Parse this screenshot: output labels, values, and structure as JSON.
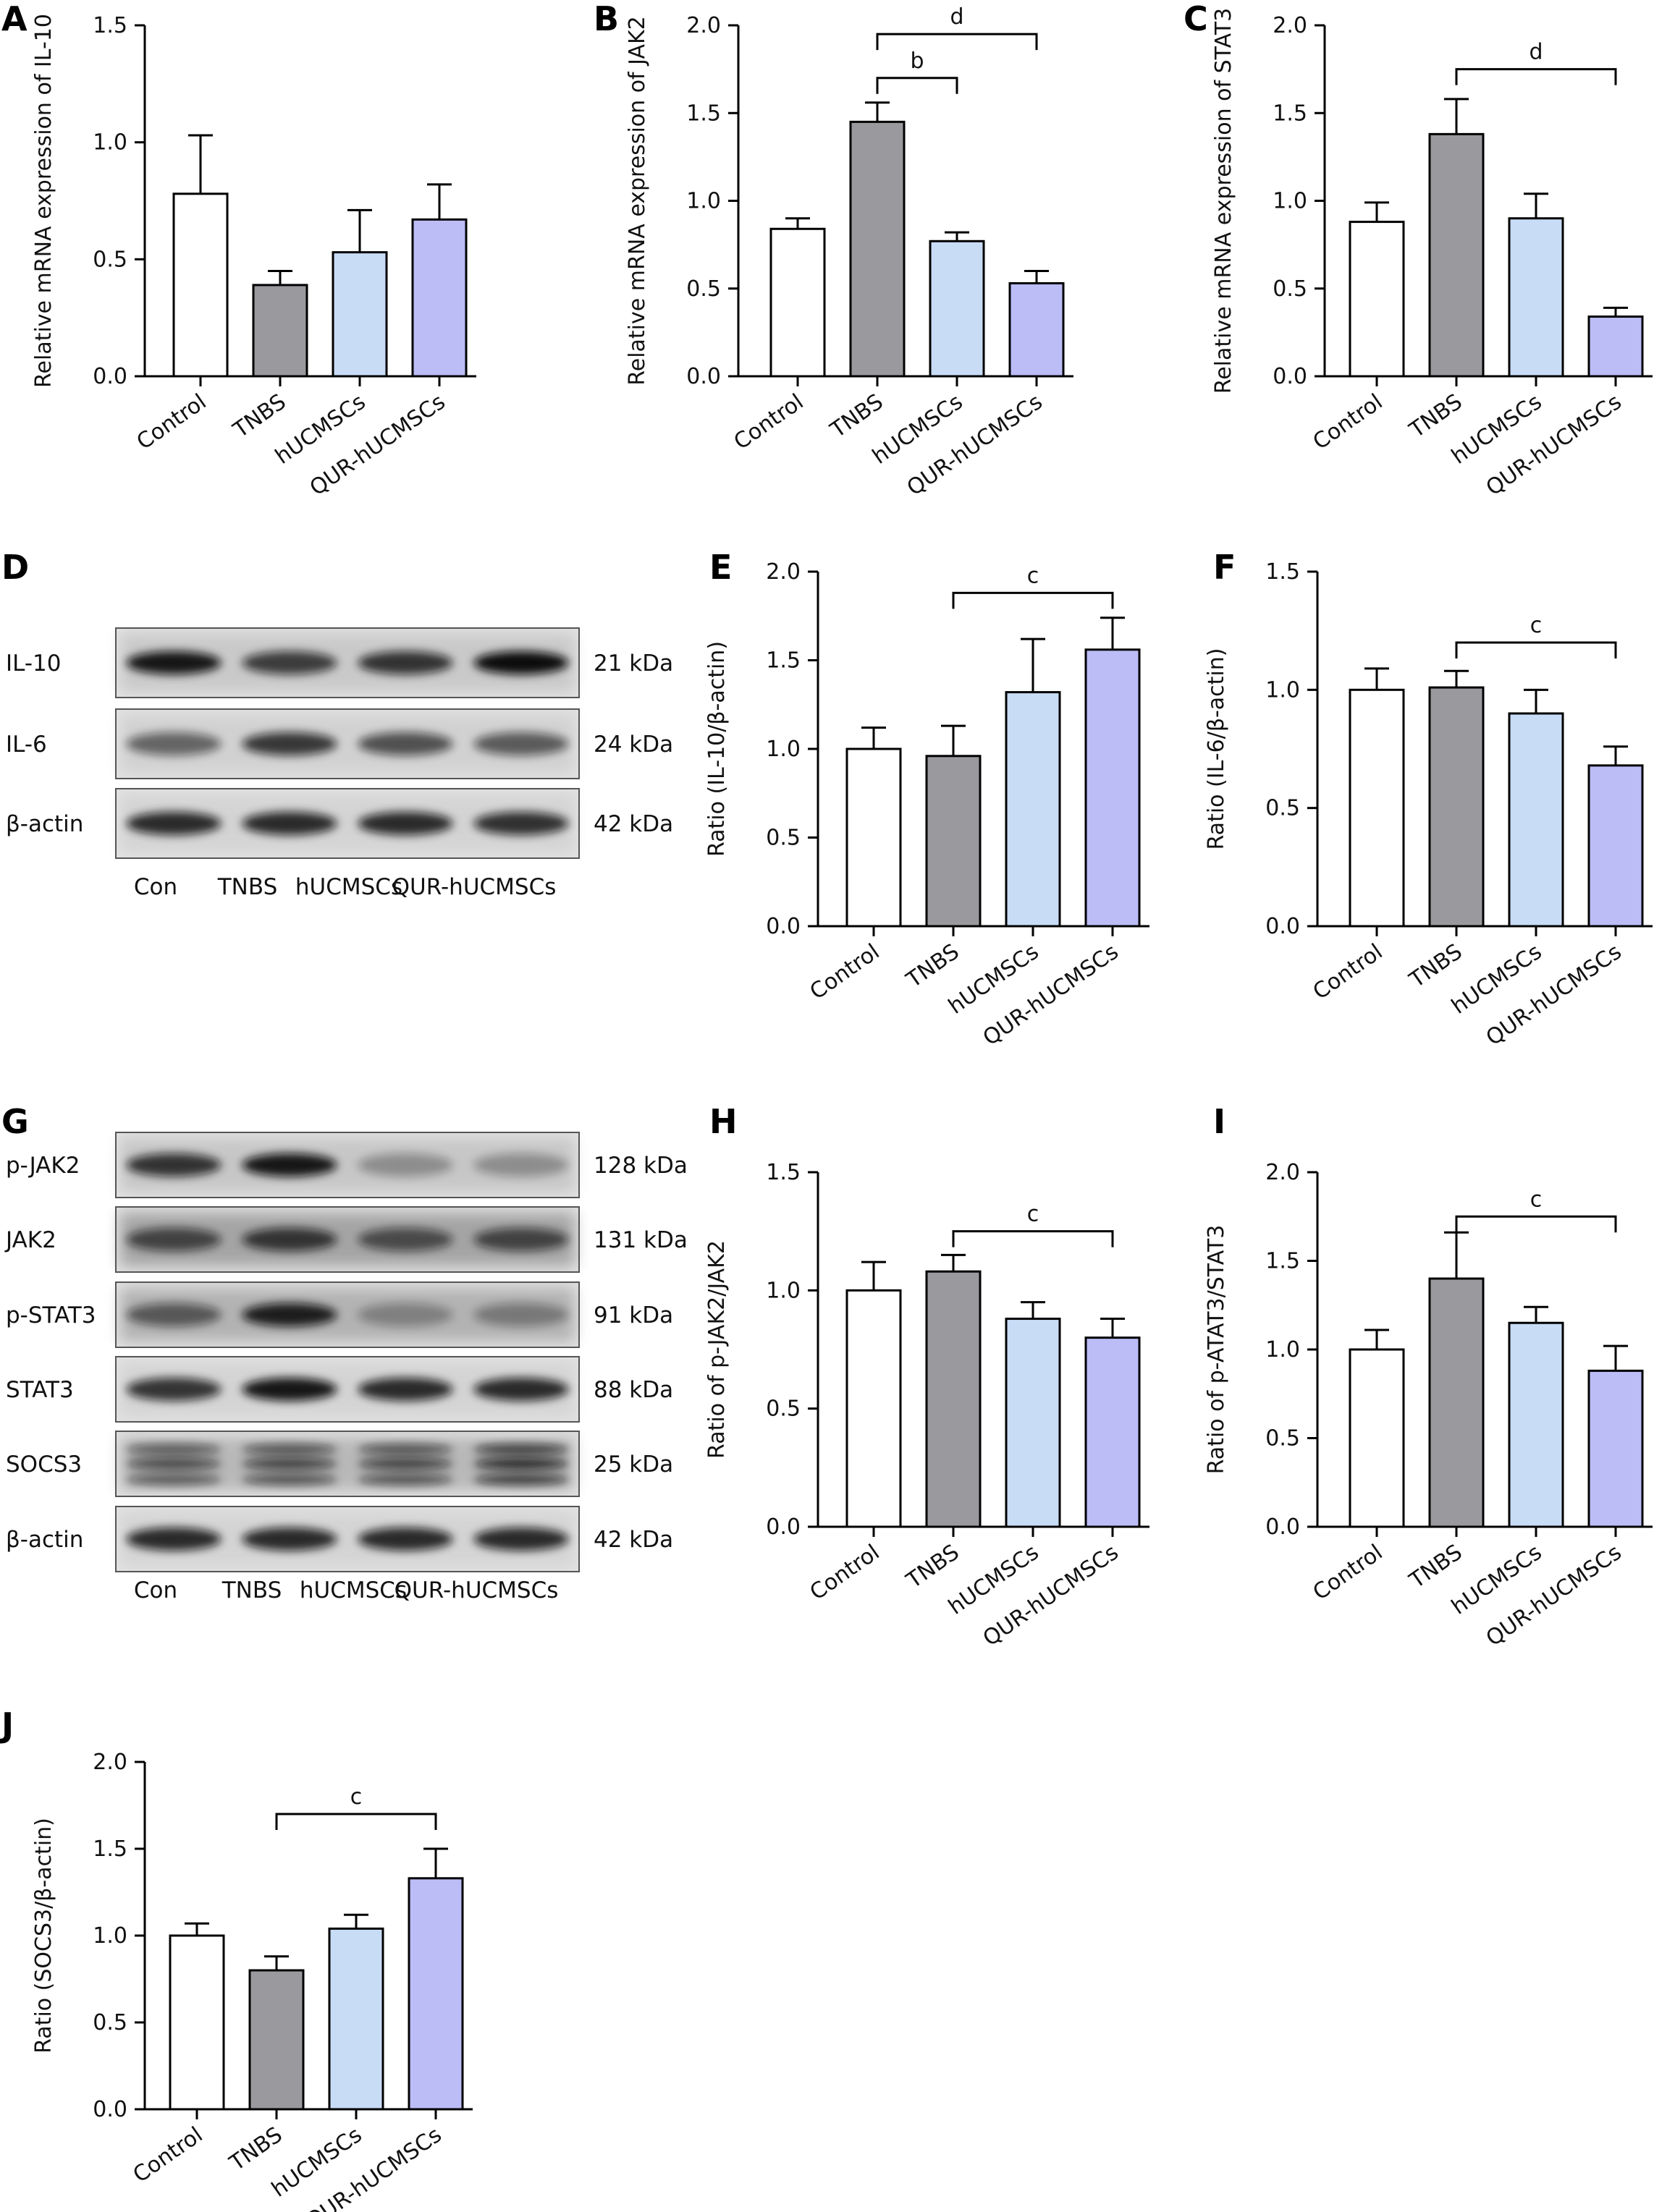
{
  "colors": {
    "Control": "#ffffff",
    "TNBS": "#9a9a9e",
    "hUCMSCs": "#c8dcf6",
    "QUR-hUCMSCs": "#bcbcf7",
    "stroke": "#000000"
  },
  "chart_data": [
    {
      "panel": "A",
      "type": "bar",
      "categories": [
        "Control",
        "TNBS",
        "hUCMSCs",
        "QUR-hUCMSCs"
      ],
      "values": [
        0.78,
        0.39,
        0.53,
        0.67
      ],
      "errors": [
        0.25,
        0.06,
        0.18,
        0.15
      ],
      "ylabel": "Relative mRNA expression of IL-10",
      "ylim": [
        0,
        1.5
      ],
      "yticks": [
        0.0,
        0.5,
        1.0,
        1.5
      ],
      "yticklabels": [
        "0.0",
        "0.5",
        "1.0",
        "1.5"
      ],
      "brackets": []
    },
    {
      "panel": "B",
      "type": "bar",
      "categories": [
        "Control",
        "TNBS",
        "hUCMSCs",
        "QUR-hUCMSCs"
      ],
      "values": [
        0.84,
        1.45,
        0.77,
        0.53
      ],
      "errors": [
        0.06,
        0.11,
        0.05,
        0.07
      ],
      "ylabel": "Relative mRNA expression of JAK2",
      "ylim": [
        0,
        2.0
      ],
      "yticks": [
        0.0,
        0.5,
        1.0,
        1.5,
        2.0
      ],
      "yticklabels": [
        "0.0",
        "0.5",
        "1.0",
        "1.5",
        "2.0"
      ],
      "brackets": [
        {
          "from": 1,
          "to": 2,
          "y": 1.7,
          "label": "b"
        },
        {
          "from": 1,
          "to": 3,
          "y": 1.95,
          "label": "d"
        }
      ]
    },
    {
      "panel": "C",
      "type": "bar",
      "categories": [
        "Control",
        "TNBS",
        "hUCMSCs",
        "QUR-hUCMSCs"
      ],
      "values": [
        0.88,
        1.38,
        0.9,
        0.34
      ],
      "errors": [
        0.11,
        0.2,
        0.14,
        0.05
      ],
      "ylabel": "Relative mRNA expression of STAT3",
      "ylim": [
        0,
        2.0
      ],
      "yticks": [
        0.0,
        0.5,
        1.0,
        1.5,
        2.0
      ],
      "yticklabels": [
        "0.0",
        "0.5",
        "1.0",
        "1.5",
        "2.0"
      ],
      "brackets": [
        {
          "from": 1,
          "to": 3,
          "y": 1.75,
          "label": "d"
        }
      ]
    },
    {
      "panel": "E",
      "type": "bar",
      "categories": [
        "Control",
        "TNBS",
        "hUCMSCs",
        "QUR-hUCMSCs"
      ],
      "values": [
        1.0,
        0.96,
        1.32,
        1.56
      ],
      "errors": [
        0.12,
        0.17,
        0.3,
        0.18
      ],
      "ylabel": "Ratio (IL-10/β-actin)",
      "ylim": [
        0,
        2.0
      ],
      "yticks": [
        0.0,
        0.5,
        1.0,
        1.5,
        2.0
      ],
      "yticklabels": [
        "0.0",
        "0.5",
        "1.0",
        "1.5",
        "2.0"
      ],
      "brackets": [
        {
          "from": 1,
          "to": 3,
          "y": 1.88,
          "label": "c"
        }
      ]
    },
    {
      "panel": "F",
      "type": "bar",
      "categories": [
        "Control",
        "TNBS",
        "hUCMSCs",
        "QUR-hUCMSCs"
      ],
      "values": [
        1.0,
        1.01,
        0.9,
        0.68
      ],
      "errors": [
        0.09,
        0.07,
        0.1,
        0.08
      ],
      "ylabel": "Ratio (IL-6/β-actin)",
      "ylim": [
        0,
        1.5
      ],
      "yticks": [
        0.0,
        0.5,
        1.0,
        1.5
      ],
      "yticklabels": [
        "0.0",
        "0.5",
        "1.0",
        "1.5"
      ],
      "brackets": [
        {
          "from": 1,
          "to": 3,
          "y": 1.2,
          "label": "c"
        }
      ]
    },
    {
      "panel": "H",
      "type": "bar",
      "categories": [
        "Control",
        "TNBS",
        "hUCMSCs",
        "QUR-hUCMSCs"
      ],
      "values": [
        1.0,
        1.08,
        0.88,
        0.8
      ],
      "errors": [
        0.12,
        0.07,
        0.07,
        0.08
      ],
      "ylabel": "Ratio of p-JAK2/JAK2",
      "ylim": [
        0,
        1.5
      ],
      "yticks": [
        0.0,
        0.5,
        1.0,
        1.5
      ],
      "yticklabels": [
        "0.0",
        "0.5",
        "1.0",
        "1.5"
      ],
      "brackets": [
        {
          "from": 1,
          "to": 3,
          "y": 1.25,
          "label": "c"
        }
      ]
    },
    {
      "panel": "I",
      "type": "bar",
      "categories": [
        "Control",
        "TNBS",
        "hUCMSCs",
        "QUR-hUCMSCs"
      ],
      "values": [
        1.0,
        1.4,
        1.15,
        0.88
      ],
      "errors": [
        0.11,
        0.26,
        0.09,
        0.14
      ],
      "ylabel": "Ratio of p-ATAT3/STAT3",
      "ylim": [
        0,
        2.0
      ],
      "yticks": [
        0.0,
        0.5,
        1.0,
        1.5,
        2.0
      ],
      "yticklabels": [
        "0.0",
        "0.5",
        "1.0",
        "1.5",
        "2.0"
      ],
      "brackets": [
        {
          "from": 1,
          "to": 3,
          "y": 1.75,
          "label": "c"
        }
      ]
    },
    {
      "panel": "J",
      "type": "bar",
      "categories": [
        "Control",
        "TNBS",
        "hUCMSCs",
        "QUR-hUCMSCs"
      ],
      "values": [
        1.0,
        0.8,
        1.04,
        1.33
      ],
      "errors": [
        0.07,
        0.08,
        0.08,
        0.17
      ],
      "ylabel": "Ratio (SOCS3/β-actin)",
      "ylim": [
        0,
        2.0
      ],
      "yticks": [
        0.0,
        0.5,
        1.0,
        1.5,
        2.0
      ],
      "yticklabels": [
        "0.0",
        "0.5",
        "1.0",
        "1.5",
        "2.0"
      ],
      "brackets": [
        {
          "from": 1,
          "to": 3,
          "y": 1.7,
          "label": "c"
        }
      ]
    }
  ],
  "blots": [
    {
      "panel": "D",
      "rows": [
        {
          "label": "IL-10",
          "kda": "21 kDa"
        },
        {
          "label": "IL-6",
          "kda": "24 kDa"
        },
        {
          "label": "β-actin",
          "kda": "42 kDa"
        }
      ],
      "lanes": [
        "Con",
        "TNBS",
        "hUCMSCs",
        "QUR-hUCMSCs"
      ]
    },
    {
      "panel": "G",
      "rows": [
        {
          "label": "p-JAK2",
          "kda": "128 kDa"
        },
        {
          "label": "JAK2",
          "kda": "131 kDa"
        },
        {
          "label": "p-STAT3",
          "kda": "91 kDa"
        },
        {
          "label": "STAT3",
          "kda": "88 kDa"
        },
        {
          "label": "SOCS3",
          "kda": "25 kDa"
        },
        {
          "label": "β-actin",
          "kda": "42 kDa"
        }
      ],
      "lanes": [
        "Con",
        "TNBS",
        "hUCMSCs",
        "QUR-hUCMSCs"
      ]
    }
  ]
}
